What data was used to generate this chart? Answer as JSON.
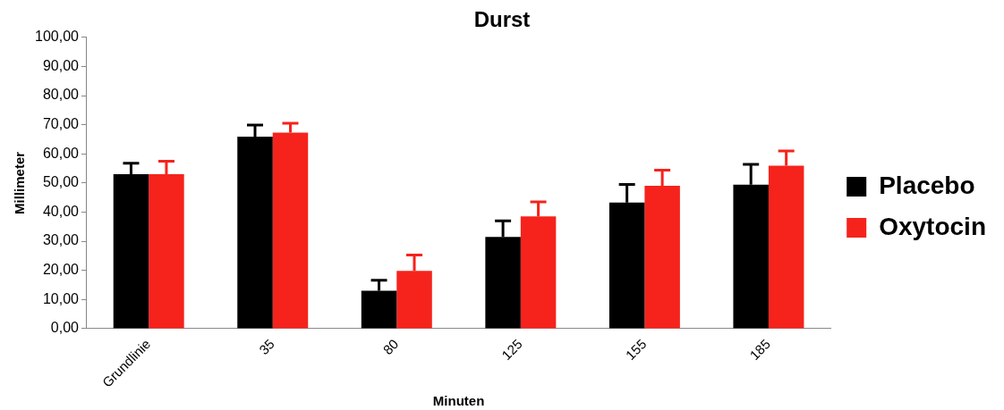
{
  "chart_data": {
    "type": "bar",
    "title": "Durst",
    "xlabel": "Minuten",
    "ylabel": "Millimeter",
    "categories": [
      "Grundlinie",
      "35",
      "80",
      "125",
      "155",
      "185"
    ],
    "series": [
      {
        "name": "Placebo",
        "color": "#000000",
        "values": [
          53,
          65.9,
          13,
          31.5,
          43.3,
          49.4
        ],
        "errors": [
          [
            53,
            56.8
          ],
          [
            65.9,
            69.9
          ],
          [
            13,
            16.6
          ],
          [
            31.5,
            37
          ],
          [
            43.3,
            49.5
          ],
          [
            49.4,
            56.4
          ]
        ]
      },
      {
        "name": "Oxytocin",
        "color": "#f5231c",
        "values": [
          53,
          67.3,
          19.8,
          38.5,
          49,
          55.9
        ],
        "errors": [
          [
            53,
            57.5
          ],
          [
            67.3,
            70.5
          ],
          [
            19.8,
            25.3
          ],
          [
            38.5,
            43.5
          ],
          [
            49,
            54.4
          ],
          [
            55.9,
            61
          ]
        ]
      }
    ],
    "ylim": [
      0,
      100
    ],
    "yticks": [
      {
        "value": 0,
        "label": "0,00"
      },
      {
        "value": 10,
        "label": "10,00"
      },
      {
        "value": 20,
        "label": "20,00"
      },
      {
        "value": 30,
        "label": "30,00"
      },
      {
        "value": 40,
        "label": "40,00"
      },
      {
        "value": 50,
        "label": "50,00"
      },
      {
        "value": 60,
        "label": "60,00"
      },
      {
        "value": 70,
        "label": "70,00"
      },
      {
        "value": 80,
        "label": "80,00"
      },
      {
        "value": 90,
        "label": "90,00"
      },
      {
        "value": 100,
        "label": "100,00"
      }
    ],
    "grid": false,
    "legend": "right"
  }
}
